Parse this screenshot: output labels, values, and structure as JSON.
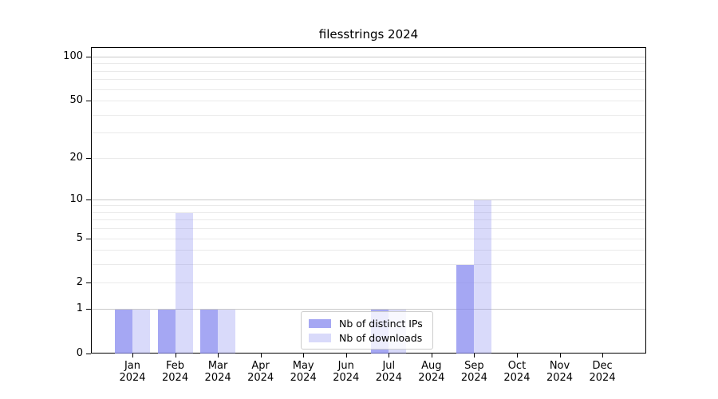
{
  "chart_data": {
    "type": "bar",
    "title": "filesstrings 2024",
    "categories": [
      "Jan",
      "Feb",
      "Mar",
      "Apr",
      "May",
      "Jun",
      "Jul",
      "Aug",
      "Sep",
      "Oct",
      "Nov",
      "Dec"
    ],
    "x_sublabel": "2024",
    "series": [
      {
        "name": "Nb of distinct IPs",
        "color": "rgba(130,133,238,0.72)",
        "solid_color": "#a5a7f3",
        "values": [
          1,
          1,
          1,
          0,
          0,
          0,
          1,
          0,
          3,
          0,
          0,
          0
        ]
      },
      {
        "name": "Nb of downloads",
        "color": "rgba(130,133,238,0.30)",
        "solid_color": "#dadbfa",
        "values": [
          1,
          8,
          1,
          0,
          0,
          0,
          1,
          0,
          10,
          0,
          0,
          0
        ]
      }
    ],
    "yscale": "log1p",
    "ylim": [
      0,
      100
    ],
    "yticks": [
      0,
      1,
      2,
      5,
      10,
      20,
      50,
      100
    ],
    "major_gridlines": [
      1,
      10,
      100
    ],
    "minor_gridlines": [
      2,
      3,
      4,
      5,
      6,
      7,
      8,
      9,
      20,
      30,
      40,
      50,
      60,
      70,
      80,
      90
    ],
    "grid": true,
    "legend_position": "lower center inside",
    "colors": {
      "major_grid": "#c9c9c9",
      "minor_grid": "#eaeaea",
      "spine": "#000000",
      "text": "#000000",
      "legend_border": "#cccccc"
    }
  }
}
